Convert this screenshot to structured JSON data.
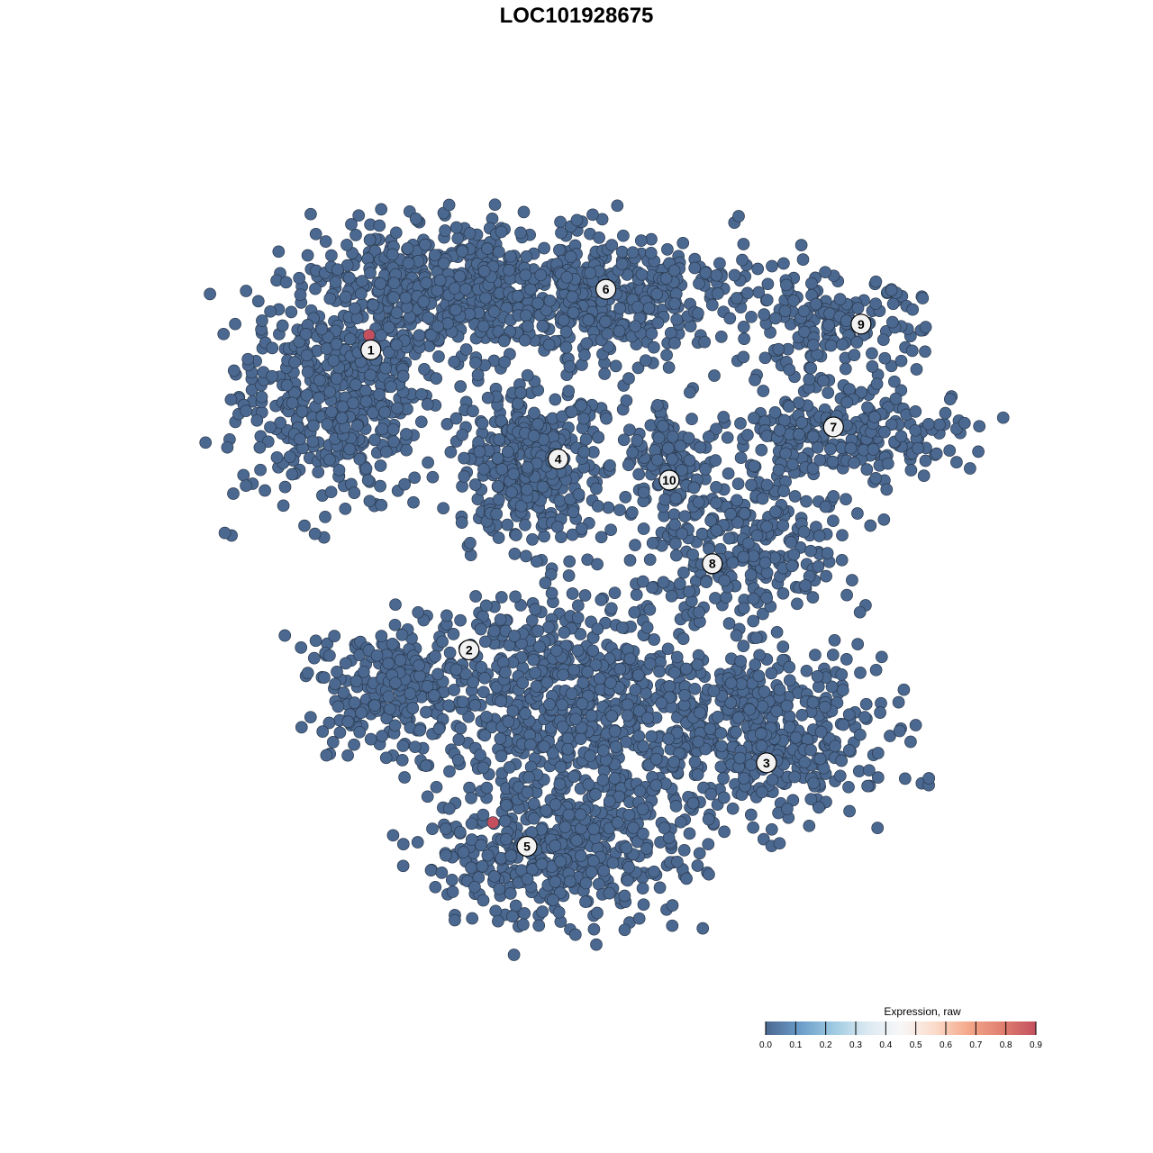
{
  "chart_data": {
    "type": "scatter",
    "title": "LOC101928675",
    "xlabel": "",
    "ylabel": "",
    "xlim": [
      -53,
      53
    ],
    "ylim": [
      -53,
      53
    ],
    "grid": false,
    "axes_visible": false,
    "point_color_default": "#4b6890",
    "point_stroke": "#2b3a4e",
    "clusters": [
      {
        "label": "1",
        "label_pos": [
          -22.4,
          24.7
        ],
        "components": [
          {
            "center": [
              -25.8,
              20
            ],
            "spread": [
              9.2,
              10
            ],
            "n": 500
          },
          {
            "center": [
              -15.8,
              31.7
            ],
            "spread": [
              10,
              5
            ],
            "n": 300
          }
        ]
      },
      {
        "label": "2",
        "label_pos": [
          -11.7,
          -8
        ],
        "components": [
          {
            "center": [
              -20,
              -12.5
            ],
            "spread": [
              7.5,
              6
            ],
            "n": 260
          }
        ]
      },
      {
        "label": "3",
        "label_pos": [
          20.7,
          -20.3
        ],
        "components": [
          {
            "center": [
              20.8,
              -17.5
            ],
            "spread": [
              10.8,
              7.5
            ],
            "n": 420
          }
        ]
      },
      {
        "label": "4",
        "label_pos": [
          -2,
          12.8
        ],
        "components": [
          {
            "center": [
              -5,
              12.5
            ],
            "spread": [
              6.7,
              7
            ],
            "n": 420
          }
        ]
      },
      {
        "label": "5",
        "label_pos": [
          -5.4,
          -29.4
        ],
        "components": [
          {
            "center": [
              -1.7,
              -30
            ],
            "spread": [
              10.8,
              6.7
            ],
            "n": 450
          },
          {
            "center": [
              0.8,
              -13.3
            ],
            "spread": [
              12.5,
              10.8
            ],
            "n": 650
          }
        ]
      },
      {
        "label": "6",
        "label_pos": [
          3.2,
          31.3
        ],
        "components": [
          {
            "center": [
              -1.7,
              30.8
            ],
            "spread": [
              16.7,
              5.8
            ],
            "n": 600
          }
        ]
      },
      {
        "label": "7",
        "label_pos": [
          28,
          16.3
        ],
        "components": [
          {
            "center": [
              29.2,
              15.8
            ],
            "spread": [
              10.8,
              4.2
            ],
            "n": 260
          }
        ]
      },
      {
        "label": "8",
        "label_pos": [
          14.8,
          1.4
        ],
        "components": [
          {
            "center": [
              19,
              3
            ],
            "spread": [
              9,
              6.5
            ],
            "n": 260
          }
        ]
      },
      {
        "label": "9",
        "label_pos": [
          31,
          27.5
        ],
        "components": [
          {
            "center": [
              27.5,
              27.5
            ],
            "spread": [
              8.3,
              4.2
            ],
            "n": 160
          }
        ]
      },
      {
        "label": "10",
        "label_pos": [
          10.1,
          10.5
        ],
        "components": [
          {
            "center": [
              10,
              13.3
            ],
            "spread": [
              4,
              5
            ],
            "n": 120
          }
        ]
      }
    ],
    "expressing_points": [
      {
        "x": -22.6,
        "y": 26.3,
        "value": 0.9
      },
      {
        "x": -9.1,
        "y": -26.8,
        "value": 0.9
      }
    ],
    "default_value": 0.0,
    "legend": {
      "title": "Expression, raw",
      "placement": "bottom-right",
      "ticks": [
        "0.0",
        "0.1",
        "0.2",
        "0.3",
        "0.4",
        "0.5",
        "0.6",
        "0.7",
        "0.8",
        "0.9"
      ],
      "range": [
        0,
        0.9
      ],
      "colors": [
        "#4b6890",
        "#6a9cc9",
        "#9ecae1",
        "#dbe9f2",
        "#f7f7f7",
        "#fbdccb",
        "#f4a88a",
        "#e07f70",
        "#c4505f"
      ]
    }
  }
}
